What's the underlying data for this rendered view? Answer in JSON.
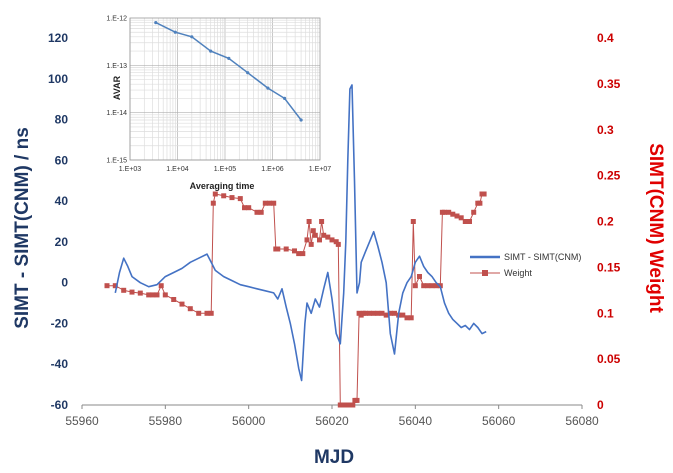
{
  "chart_data": [
    {
      "type": "line",
      "xlabel": "MJD",
      "ylabel": "SIMT - SIMT(CNM) / ns",
      "y2label": "SIMT(CNM) Weight",
      "xlim": [
        55960,
        56080
      ],
      "ylim": [
        -60,
        120
      ],
      "y2lim": [
        0,
        0.4
      ],
      "x_ticks": [
        "55960",
        "55980",
        "56000",
        "56020",
        "56040",
        "56060",
        "56080"
      ],
      "y_ticks": [
        "-60",
        "-40",
        "-20",
        "0",
        "20",
        "40",
        "60",
        "80",
        "100",
        "120"
      ],
      "y2_ticks": [
        "0",
        "0.05",
        "0.1",
        "0.15",
        "0.2",
        "0.25",
        "0.3",
        "0.35",
        "0.4"
      ],
      "grid": false,
      "legend_position": "right",
      "colors": {
        "series1": "#4472c4",
        "series2": "#c0504d",
        "left_axis": "#1f3864",
        "right_axis": "#e00000"
      },
      "series": [
        {
          "name": "SIMT - SIMT(CNM)",
          "axis": "left",
          "x": [
            55968,
            55969,
            55970,
            55971,
            55972,
            55974,
            55976,
            55978,
            55980,
            55982,
            55984,
            55986,
            55988,
            55990,
            55991,
            55992,
            55994,
            55996,
            55998,
            56000,
            56002,
            56004,
            56006,
            56007,
            56008,
            56009,
            56010,
            56011,
            56012,
            56012.7,
            56013.5,
            56014,
            56015,
            56016,
            56017,
            56018,
            56019,
            56020,
            56021,
            56022,
            56022.8,
            56023.3,
            56023.8,
            56024.3,
            56024.8,
            56025.4,
            56026,
            56026.6,
            56027,
            56028,
            56029,
            56030,
            56031,
            56032,
            56033,
            56034,
            56035,
            56036,
            56037,
            56038,
            56039,
            56040,
            56041,
            56042,
            56043,
            56044,
            56045,
            56046,
            56047,
            56048,
            56049,
            56050,
            56051,
            56052,
            56053,
            56054,
            56055,
            56056,
            56057
          ],
          "y": [
            -5,
            5,
            12,
            8,
            3,
            0,
            -2,
            -1,
            3,
            5,
            7,
            10,
            12,
            14,
            10,
            6,
            3,
            1,
            -1,
            -2,
            -3,
            -4,
            -5,
            -8,
            -3,
            -12,
            -20,
            -30,
            -42,
            -48,
            -20,
            -10,
            -15,
            -8,
            -12,
            -3,
            5,
            -8,
            -25,
            -30,
            -5,
            20,
            60,
            95,
            97,
            50,
            -5,
            0,
            10,
            15,
            20,
            25,
            18,
            10,
            0,
            -25,
            -35,
            -15,
            -5,
            0,
            3,
            10,
            13,
            8,
            5,
            3,
            0,
            -2,
            -10,
            -15,
            -18,
            -20,
            -22,
            -21,
            -23,
            -20,
            -22,
            -25,
            -24
          ]
        },
        {
          "name": "Weight",
          "axis": "right",
          "x": [
            55966,
            55968,
            55970,
            55972,
            55974,
            55976,
            55977,
            55978,
            55979,
            55980,
            55982,
            55984,
            55986,
            55988,
            55990,
            55991,
            55991.5,
            55992,
            55994,
            55996,
            55998,
            55999,
            56000,
            56002,
            56003,
            56004,
            56005,
            56006,
            56006.5,
            56007,
            56009,
            56011,
            56012,
            56013,
            56014,
            56014.5,
            56015,
            56015.5,
            56016,
            56017,
            56017.5,
            56018,
            56019,
            56020,
            56021,
            56021.5,
            56022,
            56023,
            56024,
            56025,
            56025.5,
            56026,
            56026.5,
            56027,
            56027.5,
            56028,
            56029,
            56030,
            56031,
            56032,
            56033,
            56034,
            56035,
            56036,
            56037,
            56038,
            56039,
            56039.5,
            56040,
            56041,
            56042,
            56043,
            56044,
            56045,
            56046,
            56046.5,
            56047,
            56048,
            56049,
            56050,
            56051,
            56052,
            56053,
            56054,
            56055,
            56055.5,
            56056,
            56056.5
          ],
          "y": [
            0.13,
            0.13,
            0.125,
            0.123,
            0.122,
            0.12,
            0.12,
            0.12,
            0.13,
            0.12,
            0.115,
            0.11,
            0.105,
            0.1,
            0.1,
            0.1,
            0.22,
            0.23,
            0.228,
            0.226,
            0.225,
            0.215,
            0.215,
            0.21,
            0.21,
            0.22,
            0.22,
            0.22,
            0.17,
            0.17,
            0.17,
            0.168,
            0.165,
            0.165,
            0.18,
            0.2,
            0.175,
            0.19,
            0.185,
            0.18,
            0.2,
            0.185,
            0.183,
            0.18,
            0.178,
            0.175,
            0.0,
            0.0,
            0.0,
            0.0,
            0.005,
            0.005,
            0.1,
            0.098,
            0.1,
            0.1,
            0.1,
            0.1,
            0.1,
            0.1,
            0.098,
            0.1,
            0.1,
            0.098,
            0.098,
            0.095,
            0.095,
            0.2,
            0.13,
            0.14,
            0.13,
            0.13,
            0.13,
            0.13,
            0.13,
            0.21,
            0.21,
            0.21,
            0.208,
            0.206,
            0.204,
            0.2,
            0.2,
            0.21,
            0.22,
            0.22,
            0.23,
            0.23
          ]
        }
      ]
    },
    {
      "type": "line",
      "xlabel": "Averaging time",
      "ylabel": "AVAR",
      "x_scale": "log",
      "y_scale": "log",
      "xlim": [
        1000,
        10000000
      ],
      "ylim": [
        1e-15,
        1e-12
      ],
      "x_ticks": [
        "1.E+03",
        "1.E+04",
        "1.E+05",
        "1.E+06",
        "1.E+07"
      ],
      "y_ticks": [
        "1.E-12",
        "1.E-13",
        "1.E-14",
        "1.E-15"
      ],
      "grid": true,
      "series": [
        {
          "x": [
            3500,
            9000,
            20000,
            50000,
            120000,
            300000,
            800000,
            1800000,
            4000000
          ],
          "y": [
            8e-13,
            5e-13,
            4e-13,
            2e-13,
            1.4e-13,
            7e-14,
            3.3e-14,
            2e-14,
            7e-15
          ]
        }
      ]
    }
  ]
}
